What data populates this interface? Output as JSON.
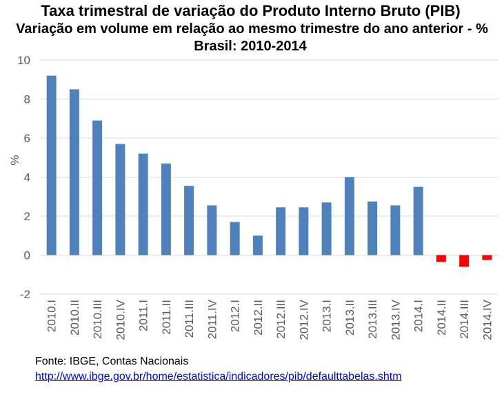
{
  "chart_data": {
    "type": "bar",
    "title": "Taxa trimestral de variação do Produto Interno Bruto (PIB)",
    "subtitle": "Variação em volume em relação ao mesmo trimestre do ano anterior - %",
    "subtitle2": "Brasil: 2010-2014",
    "xlabel": "",
    "ylabel": "%",
    "ylim": [
      -2,
      10
    ],
    "yticks": [
      -2,
      0,
      2,
      4,
      6,
      8,
      10
    ],
    "grid": true,
    "categories": [
      "2010.I",
      "2010.II",
      "2010.III",
      "2010.IV",
      "2011.I",
      "2011.II",
      "2011.III",
      "2011.IV",
      "2012.I",
      "2012.II",
      "2012.III",
      "2012.IV",
      "2013.I",
      "2013.II",
      "2013.III",
      "2013.IV",
      "2014.I",
      "2014.II",
      "2014.III",
      "2014.IV"
    ],
    "values": [
      9.2,
      8.5,
      6.9,
      5.7,
      5.2,
      4.7,
      3.55,
      2.55,
      1.7,
      1.0,
      2.45,
      2.45,
      2.7,
      4.0,
      2.75,
      2.55,
      3.5,
      -0.35,
      -0.6,
      -0.25
    ],
    "colors": {
      "positive": "#4F81BD",
      "negative": "#FF0000",
      "grid": "#D9D9D9",
      "axis_text": "#595959"
    }
  },
  "footer": {
    "source": "Fonte: IBGE, Contas Nacionais",
    "link": "http://www.ibge.gov.br/home/estatistica/indicadores/pib/defaulttabelas.shtm"
  }
}
